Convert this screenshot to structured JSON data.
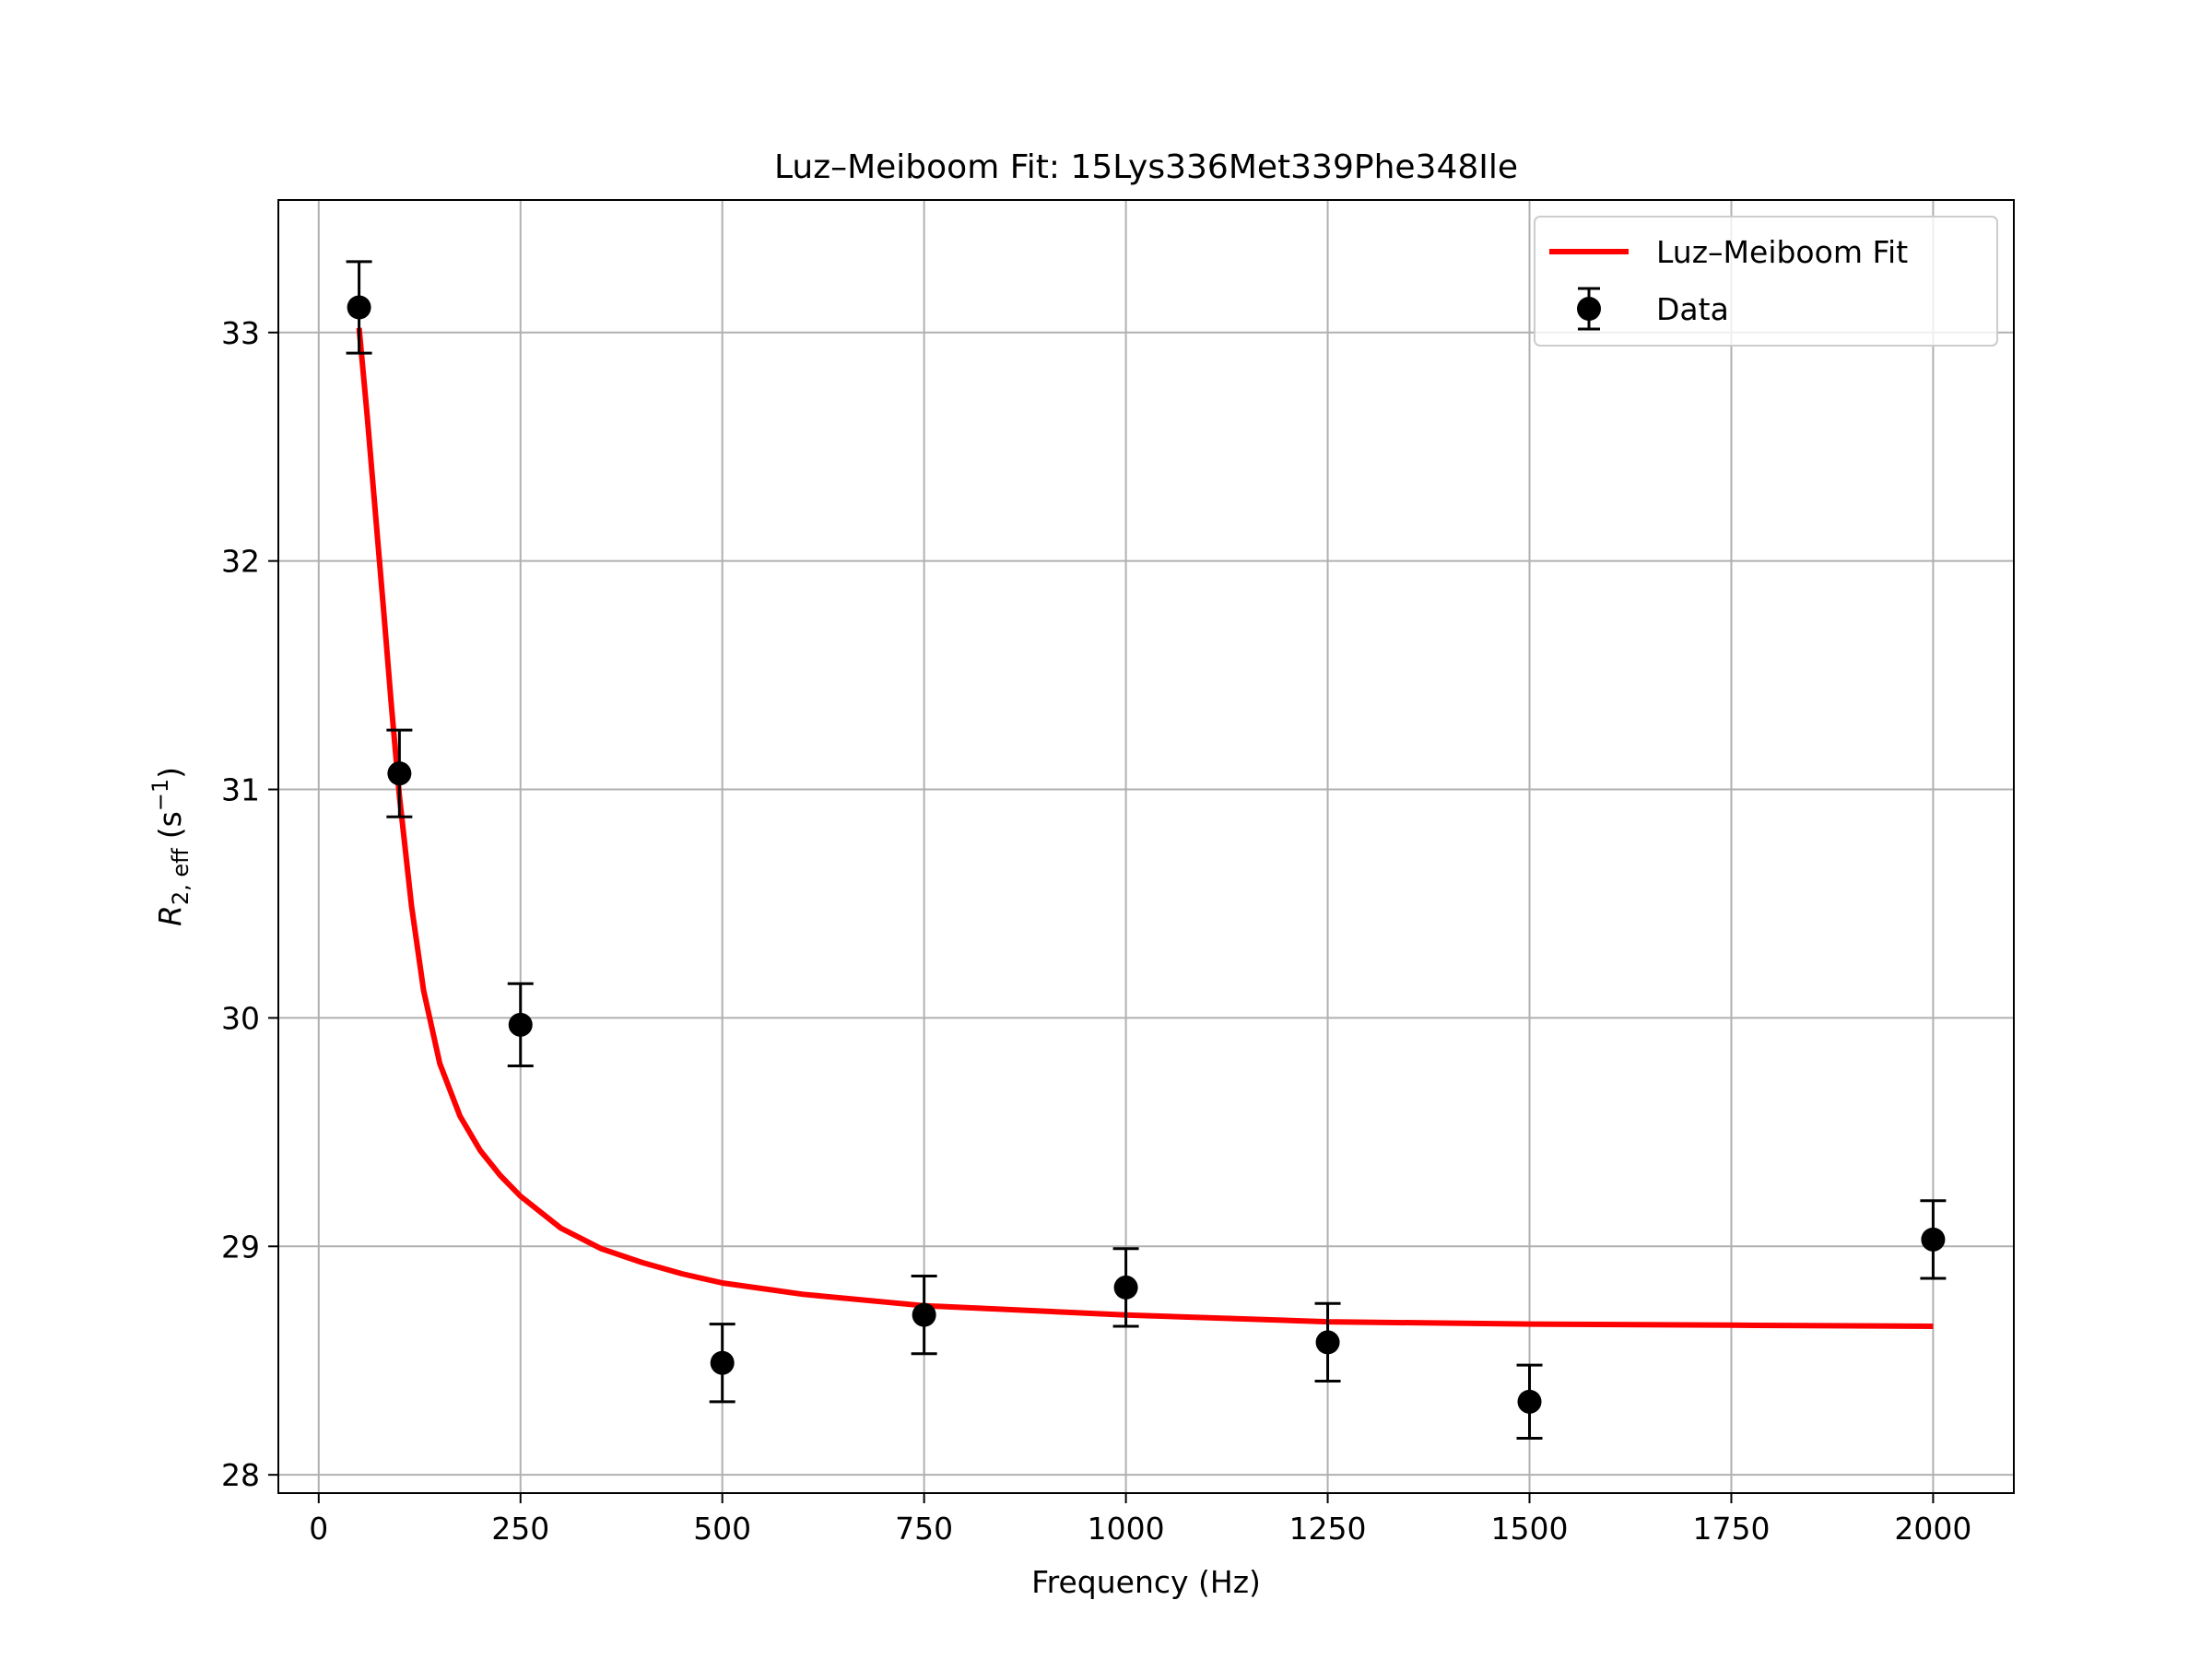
{
  "chart_data": {
    "type": "scatter",
    "title": "Luz–Meiboom Fit: 15Lys336Met339Phe348Ile",
    "xlabel": "Frequency (Hz)",
    "ylabel": {
      "main": "R",
      "subscript": "2, eff",
      "unit_prefix": "(s",
      "unit_sup": "−1",
      "unit_suffix": ")"
    },
    "xlim": [
      -50,
      2100
    ],
    "ylim": [
      27.92,
      33.58
    ],
    "xticks": [
      0,
      250,
      500,
      750,
      1000,
      1250,
      1500,
      1750,
      2000
    ],
    "yticks": [
      28,
      29,
      30,
      31,
      32,
      33
    ],
    "grid": true,
    "legend_position": "top-right",
    "series": [
      {
        "name": "Data",
        "kind": "errorbar",
        "color": "#000000",
        "x": [
          50,
          100,
          250,
          500,
          750,
          1000,
          1250,
          1500,
          2000
        ],
        "y": [
          33.11,
          31.07,
          29.97,
          28.49,
          28.7,
          28.82,
          28.58,
          28.32,
          29.03
        ],
        "yerr": [
          0.2,
          0.19,
          0.18,
          0.17,
          0.17,
          0.17,
          0.17,
          0.16,
          0.17
        ]
      },
      {
        "name": "Luz–Meiboom Fit",
        "kind": "line",
        "color": "#ff0000",
        "x": [
          50,
          60,
          70,
          80,
          90,
          100,
          115,
          130,
          150,
          175,
          200,
          225,
          250,
          300,
          350,
          400,
          450,
          500,
          600,
          750,
          1000,
          1250,
          1500,
          1750,
          2000
        ],
        "y": [
          33.02,
          32.64,
          32.22,
          31.8,
          31.37,
          30.97,
          30.49,
          30.12,
          29.8,
          29.57,
          29.42,
          29.31,
          29.22,
          29.08,
          28.99,
          28.93,
          28.88,
          28.84,
          28.79,
          28.74,
          28.7,
          28.67,
          28.66,
          28.655,
          28.65
        ]
      }
    ]
  }
}
